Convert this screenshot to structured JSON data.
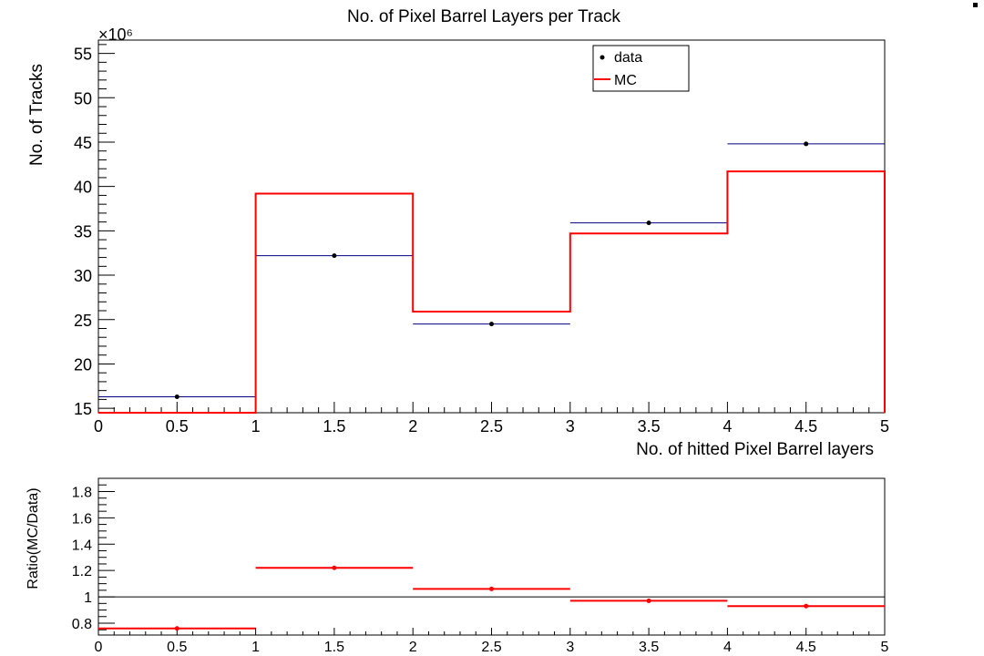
{
  "chart_data": [
    {
      "type": "step",
      "title": "No. of Pixel Barrel Layers per Track",
      "xlabel": "No. of hitted Pixel Barrel layers",
      "ylabel": "No. of Tracks",
      "y_exponent_label": "×10⁶",
      "xlim": [
        0,
        5
      ],
      "ylim": [
        14.5,
        56.5
      ],
      "x_ticks": [
        "0",
        "0.5",
        "1",
        "1.5",
        "2",
        "2.5",
        "3",
        "3.5",
        "4",
        "4.5",
        "5"
      ],
      "y_ticks": [
        "15",
        "20",
        "25",
        "30",
        "35",
        "40",
        "45",
        "50",
        "55"
      ],
      "bin_edges": [
        0,
        1,
        2,
        3,
        4,
        5
      ],
      "legend": [
        {
          "label": "data",
          "marker": "point",
          "color": "#000000"
        },
        {
          "label": "MC",
          "marker": "line",
          "color": "#ff0000"
        }
      ],
      "series": [
        {
          "name": "data",
          "style": "points_with_x_errors",
          "color": "#000000",
          "bar_color": "#000080",
          "x": [
            0.5,
            1.5,
            2.5,
            3.5,
            4.5
          ],
          "values": [
            16.3,
            32.2,
            24.5,
            35.9,
            44.8
          ]
        },
        {
          "name": "MC",
          "style": "step",
          "color": "#ff0000",
          "values": [
            14.5,
            39.2,
            25.9,
            34.7,
            41.7
          ]
        }
      ]
    },
    {
      "type": "step",
      "ylabel": "Ratio(MC/Data)",
      "xlim": [
        0,
        5
      ],
      "ylim": [
        0.71,
        1.9
      ],
      "x_ticks": [
        "0",
        "0.5",
        "1",
        "1.5",
        "2",
        "2.5",
        "3",
        "3.5",
        "4",
        "4.5",
        "5"
      ],
      "y_ticks": [
        "0.8",
        "1",
        "1.2",
        "1.4",
        "1.6",
        "1.8"
      ],
      "reference_line": 1.0,
      "series": [
        {
          "name": "",
          "style": "points_with_x_errors",
          "color": "#ff0000",
          "x": [
            0.5,
            1.5,
            2.5,
            3.5,
            4.5
          ],
          "values": [
            0.76,
            1.22,
            1.06,
            0.97,
            0.93
          ]
        }
      ]
    }
  ]
}
